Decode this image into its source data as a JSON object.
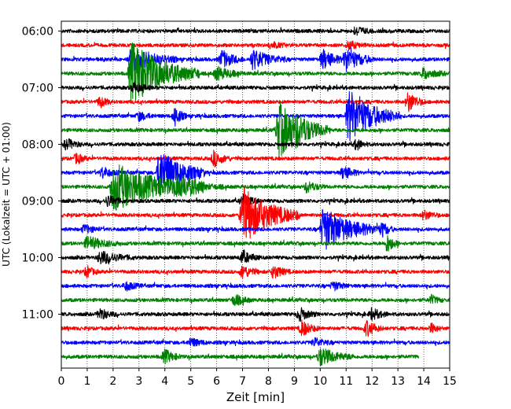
{
  "chart_data": {
    "type": "line",
    "xlabel": "Zeit  [min]",
    "ylabel": "UTC (Lokalzeit = UTC + 01:00)",
    "xlim": [
      0,
      15
    ],
    "x_ticks": [
      "0",
      "1",
      "2",
      "3",
      "4",
      "5",
      "6",
      "7",
      "8",
      "9",
      "10",
      "11",
      "12",
      "13",
      "14",
      "15"
    ],
    "y_ticks": [
      "06:00",
      "07:00",
      "08:00",
      "09:00",
      "10:00",
      "11:00"
    ],
    "grid": "vertical dotted",
    "trace_interval_min": 15,
    "start_time": "06:00",
    "trace_colors": [
      "#000000",
      "#ff0000",
      "#0000ff",
      "#008000"
    ],
    "traces": [
      {
        "start": "06:00",
        "color": "#000000",
        "end_min": 15,
        "events": [
          {
            "t": 11.4,
            "amp": 0.4,
            "dur": 0.3
          }
        ]
      },
      {
        "start": "06:15",
        "color": "#ff0000",
        "end_min": 15,
        "events": [
          {
            "t": 8.1,
            "amp": 0.3,
            "dur": 0.3
          },
          {
            "t": 11.1,
            "amp": 0.4,
            "dur": 0.3
          }
        ]
      },
      {
        "start": "06:30",
        "color": "#0000ff",
        "end_min": 15,
        "events": [
          {
            "t": 2.7,
            "amp": 1.2,
            "dur": 0.8
          },
          {
            "t": 6.2,
            "amp": 0.8,
            "dur": 0.4
          },
          {
            "t": 7.4,
            "amp": 0.9,
            "dur": 0.6
          },
          {
            "t": 10.1,
            "amp": 0.9,
            "dur": 0.4
          },
          {
            "t": 11.0,
            "amp": 1.1,
            "dur": 0.5
          }
        ]
      },
      {
        "start": "06:45",
        "color": "#008000",
        "end_min": 15,
        "events": [
          {
            "t": 2.7,
            "amp": 2.8,
            "dur": 1.2
          },
          {
            "t": 6.0,
            "amp": 0.6,
            "dur": 0.5
          },
          {
            "t": 14.0,
            "amp": 0.5,
            "dur": 0.4
          }
        ]
      },
      {
        "start": "07:00",
        "color": "#000000",
        "end_min": 15,
        "events": [
          {
            "t": 2.8,
            "amp": 0.5,
            "dur": 0.3
          }
        ]
      },
      {
        "start": "07:15",
        "color": "#ff0000",
        "end_min": 15,
        "events": [
          {
            "t": 1.5,
            "amp": 0.5,
            "dur": 0.2
          },
          {
            "t": 13.4,
            "amp": 0.9,
            "dur": 0.3
          }
        ]
      },
      {
        "start": "07:30",
        "color": "#0000ff",
        "end_min": 15,
        "events": [
          {
            "t": 3.0,
            "amp": 0.4,
            "dur": 0.3
          },
          {
            "t": 4.4,
            "amp": 0.9,
            "dur": 0.2
          },
          {
            "t": 11.1,
            "amp": 2.4,
            "dur": 0.9
          }
        ]
      },
      {
        "start": "07:45",
        "color": "#008000",
        "end_min": 15,
        "events": [
          {
            "t": 8.4,
            "amp": 2.5,
            "dur": 0.9
          },
          {
            "t": 9.1,
            "amp": 0.5,
            "dur": 0.3
          }
        ]
      },
      {
        "start": "08:00",
        "color": "#000000",
        "end_min": 15,
        "events": [
          {
            "t": 0.2,
            "amp": 0.5,
            "dur": 0.3
          },
          {
            "t": 11.4,
            "amp": 0.5,
            "dur": 0.2
          }
        ]
      },
      {
        "start": "08:15",
        "color": "#ff0000",
        "end_min": 15,
        "events": [
          {
            "t": 0.6,
            "amp": 0.5,
            "dur": 0.2
          },
          {
            "t": 5.9,
            "amp": 0.7,
            "dur": 0.3
          }
        ]
      },
      {
        "start": "08:30",
        "color": "#0000ff",
        "end_min": 15,
        "events": [
          {
            "t": 1.6,
            "amp": 0.5,
            "dur": 0.3
          },
          {
            "t": 3.8,
            "amp": 2.2,
            "dur": 0.8
          },
          {
            "t": 10.9,
            "amp": 0.6,
            "dur": 0.3
          }
        ]
      },
      {
        "start": "08:45",
        "color": "#008000",
        "end_min": 15,
        "events": [
          {
            "t": 2.0,
            "amp": 2.2,
            "dur": 1.6
          },
          {
            "t": 4.5,
            "amp": 0.6,
            "dur": 0.8
          },
          {
            "t": 9.5,
            "amp": 0.5,
            "dur": 0.3
          }
        ]
      },
      {
        "start": "09:00",
        "color": "#000000",
        "end_min": 15,
        "events": [
          {
            "t": 1.8,
            "amp": 0.5,
            "dur": 0.3
          },
          {
            "t": 7.0,
            "amp": 0.6,
            "dur": 0.3
          }
        ]
      },
      {
        "start": "09:15",
        "color": "#ff0000",
        "end_min": 15,
        "events": [
          {
            "t": 7.0,
            "amp": 2.6,
            "dur": 1.0
          },
          {
            "t": 14.0,
            "amp": 0.4,
            "dur": 0.3
          }
        ]
      },
      {
        "start": "09:30",
        "color": "#0000ff",
        "end_min": 15,
        "events": [
          {
            "t": 0.9,
            "amp": 0.4,
            "dur": 0.3
          },
          {
            "t": 10.1,
            "amp": 2.0,
            "dur": 1.0
          },
          {
            "t": 12.4,
            "amp": 0.7,
            "dur": 0.2
          }
        ]
      },
      {
        "start": "09:45",
        "color": "#008000",
        "end_min": 15,
        "events": [
          {
            "t": 1.0,
            "amp": 0.6,
            "dur": 0.6
          },
          {
            "t": 12.6,
            "amp": 0.8,
            "dur": 0.2
          }
        ]
      },
      {
        "start": "10:00",
        "color": "#000000",
        "end_min": 15,
        "events": [
          {
            "t": 1.5,
            "amp": 0.6,
            "dur": 0.6
          },
          {
            "t": 7.0,
            "amp": 0.6,
            "dur": 0.3
          }
        ]
      },
      {
        "start": "10:15",
        "color": "#ff0000",
        "end_min": 15,
        "events": [
          {
            "t": 1.0,
            "amp": 0.5,
            "dur": 0.2
          },
          {
            "t": 7.0,
            "amp": 0.6,
            "dur": 0.3
          },
          {
            "t": 8.2,
            "amp": 0.6,
            "dur": 0.3
          }
        ]
      },
      {
        "start": "10:30",
        "color": "#0000ff",
        "end_min": 15,
        "events": [
          {
            "t": 2.5,
            "amp": 0.4,
            "dur": 0.3
          },
          {
            "t": 10.5,
            "amp": 0.4,
            "dur": 0.3
          }
        ]
      },
      {
        "start": "10:45",
        "color": "#008000",
        "end_min": 15,
        "events": [
          {
            "t": 6.7,
            "amp": 0.5,
            "dur": 0.3
          },
          {
            "t": 14.3,
            "amp": 0.4,
            "dur": 0.2
          }
        ]
      },
      {
        "start": "11:00",
        "color": "#000000",
        "end_min": 15,
        "events": [
          {
            "t": 1.5,
            "amp": 0.5,
            "dur": 0.3
          },
          {
            "t": 9.2,
            "amp": 0.6,
            "dur": 0.3
          },
          {
            "t": 12.0,
            "amp": 0.5,
            "dur": 0.3
          }
        ]
      },
      {
        "start": "11:15",
        "color": "#ff0000",
        "end_min": 15,
        "events": [
          {
            "t": 9.3,
            "amp": 0.7,
            "dur": 0.3
          },
          {
            "t": 11.8,
            "amp": 0.7,
            "dur": 0.3
          },
          {
            "t": 14.3,
            "amp": 0.4,
            "dur": 0.2
          }
        ]
      },
      {
        "start": "11:30",
        "color": "#0000ff",
        "end_min": 15,
        "events": [
          {
            "t": 5.0,
            "amp": 0.4,
            "dur": 0.3
          },
          {
            "t": 9.8,
            "amp": 0.4,
            "dur": 0.3
          }
        ]
      },
      {
        "start": "11:45",
        "color": "#008000",
        "end_min": 13.8,
        "events": [
          {
            "t": 4.0,
            "amp": 0.6,
            "dur": 0.3
          },
          {
            "t": 10.0,
            "amp": 0.8,
            "dur": 0.6
          }
        ]
      }
    ]
  }
}
